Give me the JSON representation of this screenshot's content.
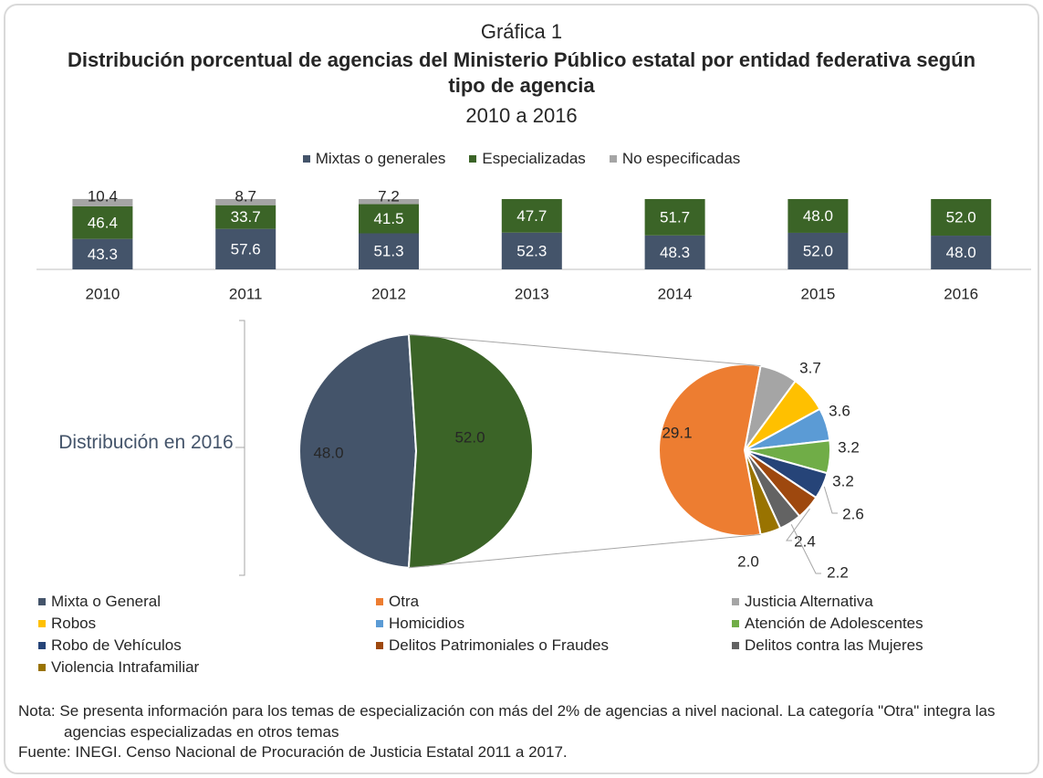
{
  "chart_data": [
    {
      "type": "bar",
      "stacked": true,
      "supertitle": "Gráfica 1",
      "title": "Distribución porcentual de agencias del Ministerio Público estatal por entidad federativa según tipo de agencia",
      "subtitle": "2010 a 2016",
      "legend": "top",
      "categories": [
        "2010",
        "2011",
        "2012",
        "2013",
        "2014",
        "2015",
        "2016"
      ],
      "ylim": [
        0,
        100
      ],
      "series": [
        {
          "name": "Mixtas o generales",
          "color": "#44546a",
          "values": [
            43.3,
            57.6,
            51.3,
            52.3,
            48.3,
            52.0,
            48.0
          ],
          "value_labels": [
            "43.3",
            "57.6",
            "51.3",
            "52.3",
            "48.3",
            "52.0",
            "48.0"
          ]
        },
        {
          "name": "Especializadas",
          "color": "#3b6427",
          "values": [
            46.4,
            33.7,
            41.5,
            47.7,
            51.7,
            48.0,
            52.0
          ],
          "value_labels": [
            "46.4",
            "33.7",
            "41.5",
            "47.7",
            "51.7",
            "48.0",
            "52.0"
          ]
        },
        {
          "name": "No especificadas",
          "color": "#a5a5a5",
          "values": [
            10.4,
            8.7,
            7.2,
            null,
            null,
            null,
            null
          ],
          "value_labels": [
            "10.4",
            "8.7",
            "7.2",
            null,
            null,
            null,
            null
          ]
        }
      ]
    },
    {
      "type": "pie_of_pie",
      "label": "Distribución en 2016",
      "main": {
        "categories": [
          "Mixta o General",
          null
        ],
        "values": [
          48.0,
          52.0
        ],
        "value_labels": [
          "48.0",
          "52.0"
        ],
        "colors": [
          "#44546a",
          "#3b6427"
        ]
      },
      "detail": {
        "categories": [
          "Otra",
          "Justicia Alternativa",
          "Robos",
          "Homicidios",
          "Atención de Adolescentes",
          "Robo de Vehículos",
          "Delitos Patrimoniales o Fraudes",
          "Delitos contra las Mujeres",
          "Violencia Intrafamiliar"
        ],
        "values": [
          29.1,
          3.7,
          3.6,
          3.2,
          3.2,
          2.6,
          2.4,
          2.2,
          2.0
        ],
        "value_labels": [
          "29.1",
          "3.7",
          "3.6",
          "3.2",
          "3.2",
          "2.6",
          "2.4",
          "2.2",
          "2.0"
        ],
        "colors": [
          "#ed7d31",
          "#a5a5a5",
          "#ffc000",
          "#5b9bd5",
          "#70ad47",
          "#264478",
          "#9e480e",
          "#636363",
          "#997300"
        ]
      }
    }
  ],
  "notes": {
    "nota": "Nota: Se presenta información para los temas de especialización con más del 2% de agencias a nivel nacional. La categoría \"Otra\" integra las agencias especializadas en otros temas",
    "fuente": "Fuente: INEGI. Censo Nacional de Procuración de Justicia Estatal 2011 a 2017."
  }
}
